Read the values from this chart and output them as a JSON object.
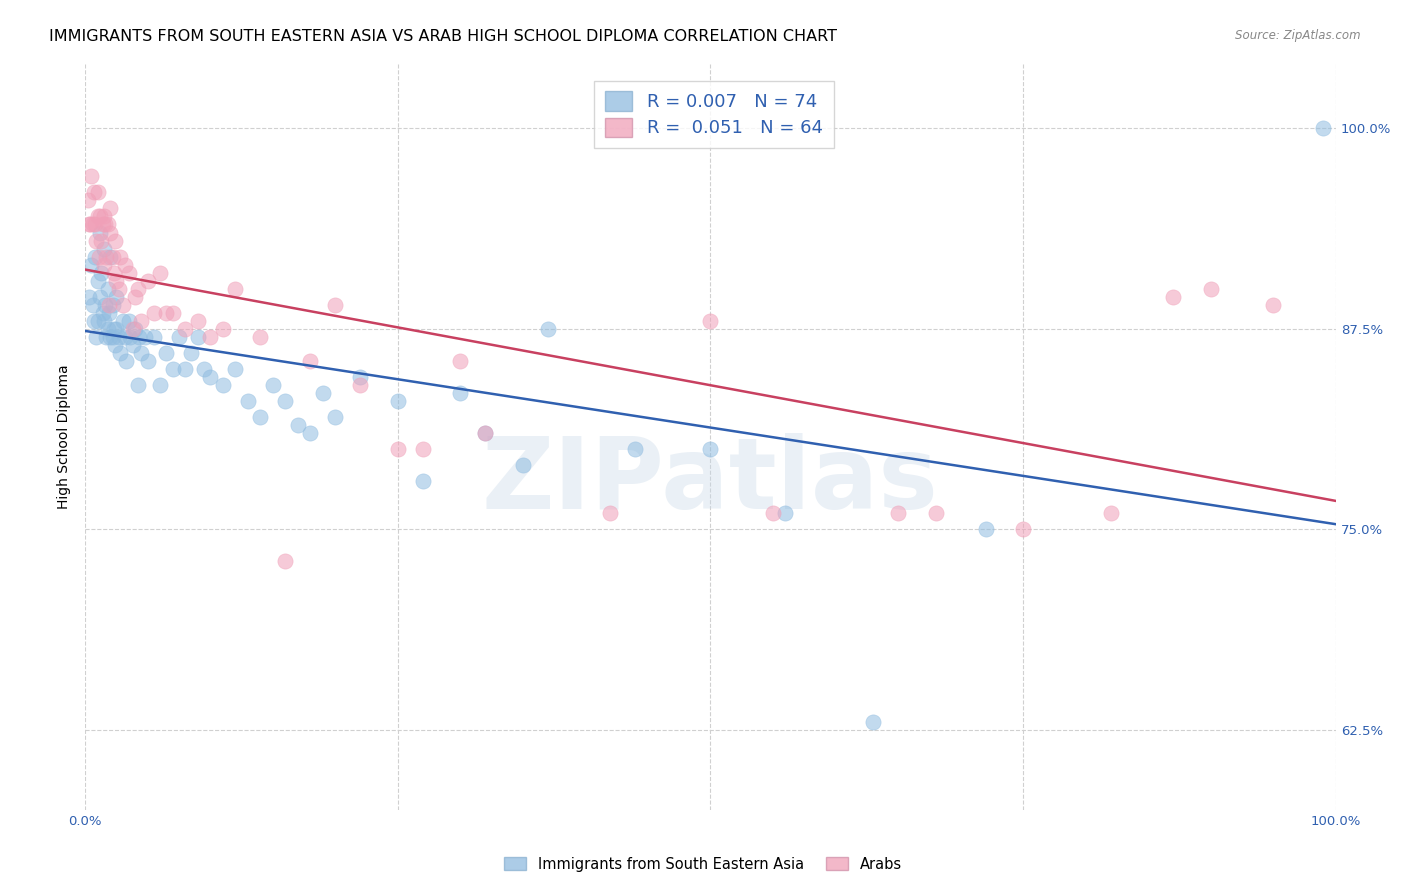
{
  "title": "IMMIGRANTS FROM SOUTH EASTERN ASIA VS ARAB HIGH SCHOOL DIPLOMA CORRELATION CHART",
  "source": "Source: ZipAtlas.com",
  "ylabel": "High School Diploma",
  "xlim": [
    0.0,
    1.0
  ],
  "ylim": [
    0.575,
    1.04
  ],
  "yticks": [
    0.625,
    0.75,
    0.875,
    1.0
  ],
  "ytick_labels": [
    "62.5%",
    "75.0%",
    "87.5%",
    "100.0%"
  ],
  "xtick_labels": [
    "0.0%",
    "",
    "",
    "",
    "100.0%"
  ],
  "blue_R": "0.007",
  "blue_N": "74",
  "pink_R": "0.051",
  "pink_N": "64",
  "blue_color": "#90bce0",
  "pink_color": "#f0a0b8",
  "blue_line_color": "#3060b0",
  "pink_line_color": "#c84060",
  "legend_label_blue": "Immigrants from South Eastern Asia",
  "legend_label_pink": "Arabs",
  "watermark": "ZIPatlas",
  "blue_x": [
    0.003,
    0.005,
    0.006,
    0.007,
    0.008,
    0.009,
    0.01,
    0.01,
    0.012,
    0.012,
    0.013,
    0.014,
    0.015,
    0.015,
    0.016,
    0.017,
    0.018,
    0.018,
    0.019,
    0.02,
    0.02,
    0.022,
    0.022,
    0.023,
    0.024,
    0.025,
    0.025,
    0.027,
    0.028,
    0.03,
    0.032,
    0.033,
    0.035,
    0.036,
    0.038,
    0.04,
    0.042,
    0.043,
    0.045,
    0.048,
    0.05,
    0.055,
    0.06,
    0.065,
    0.07,
    0.075,
    0.08,
    0.085,
    0.09,
    0.095,
    0.1,
    0.11,
    0.12,
    0.13,
    0.14,
    0.15,
    0.16,
    0.17,
    0.18,
    0.19,
    0.2,
    0.22,
    0.25,
    0.27,
    0.3,
    0.32,
    0.35,
    0.37,
    0.44,
    0.5,
    0.56,
    0.63,
    0.72,
    0.99
  ],
  "blue_y": [
    0.895,
    0.915,
    0.89,
    0.88,
    0.92,
    0.87,
    0.905,
    0.88,
    0.935,
    0.895,
    0.91,
    0.885,
    0.925,
    0.88,
    0.89,
    0.87,
    0.9,
    0.875,
    0.885,
    0.87,
    0.92,
    0.87,
    0.89,
    0.875,
    0.865,
    0.895,
    0.875,
    0.87,
    0.86,
    0.88,
    0.87,
    0.855,
    0.88,
    0.87,
    0.865,
    0.875,
    0.84,
    0.87,
    0.86,
    0.87,
    0.855,
    0.87,
    0.84,
    0.86,
    0.85,
    0.87,
    0.85,
    0.86,
    0.87,
    0.85,
    0.845,
    0.84,
    0.85,
    0.83,
    0.82,
    0.84,
    0.83,
    0.815,
    0.81,
    0.835,
    0.82,
    0.845,
    0.83,
    0.78,
    0.835,
    0.81,
    0.79,
    0.875,
    0.8,
    0.8,
    0.76,
    0.63,
    0.75,
    1.0
  ],
  "pink_x": [
    0.002,
    0.003,
    0.004,
    0.005,
    0.006,
    0.007,
    0.008,
    0.009,
    0.01,
    0.01,
    0.011,
    0.012,
    0.013,
    0.014,
    0.015,
    0.015,
    0.016,
    0.017,
    0.018,
    0.019,
    0.02,
    0.02,
    0.022,
    0.023,
    0.024,
    0.025,
    0.027,
    0.028,
    0.03,
    0.032,
    0.035,
    0.038,
    0.04,
    0.042,
    0.045,
    0.05,
    0.055,
    0.06,
    0.065,
    0.07,
    0.08,
    0.09,
    0.1,
    0.11,
    0.12,
    0.14,
    0.16,
    0.18,
    0.2,
    0.22,
    0.25,
    0.27,
    0.3,
    0.32,
    0.42,
    0.5,
    0.55,
    0.65,
    0.68,
    0.75,
    0.82,
    0.87,
    0.9,
    0.95
  ],
  "pink_y": [
    0.955,
    0.94,
    0.94,
    0.97,
    0.94,
    0.96,
    0.94,
    0.93,
    0.96,
    0.945,
    0.92,
    0.945,
    0.93,
    0.94,
    0.915,
    0.945,
    0.94,
    0.92,
    0.94,
    0.89,
    0.935,
    0.95,
    0.92,
    0.91,
    0.93,
    0.905,
    0.9,
    0.92,
    0.89,
    0.915,
    0.91,
    0.875,
    0.895,
    0.9,
    0.88,
    0.905,
    0.885,
    0.91,
    0.885,
    0.885,
    0.875,
    0.88,
    0.87,
    0.875,
    0.9,
    0.87,
    0.73,
    0.855,
    0.89,
    0.84,
    0.8,
    0.8,
    0.855,
    0.81,
    0.76,
    0.88,
    0.76,
    0.76,
    0.76,
    0.75,
    0.76,
    0.895,
    0.9,
    0.89
  ],
  "background": "#ffffff",
  "grid_color": "#d0d0d0",
  "title_fontsize": 11.5,
  "legend_fontsize": 13,
  "marker_size": 120
}
